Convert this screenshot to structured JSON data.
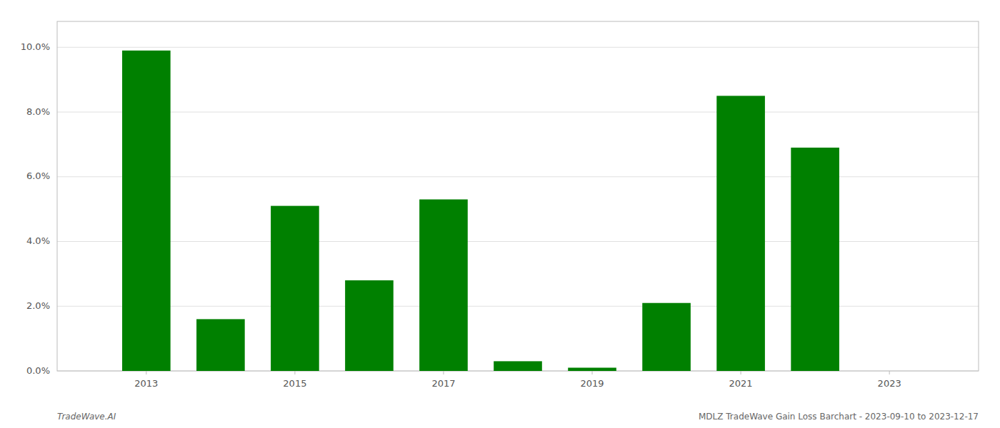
{
  "chart_data": {
    "type": "bar",
    "x": [
      2013,
      2014,
      2015,
      2016,
      2017,
      2018,
      2019,
      2020,
      2021,
      2022,
      2023
    ],
    "values": [
      0.099,
      0.016,
      0.051,
      0.028,
      0.053,
      0.003,
      0.001,
      0.021,
      0.085,
      0.069,
      0.0
    ],
    "color": "#008000",
    "xlim": [
      2011.8,
      2024.2
    ],
    "xticks": [
      2013,
      2015,
      2017,
      2019,
      2021,
      2023
    ],
    "ylim": [
      0,
      0.108
    ],
    "yticks": [
      {
        "value": 0.0,
        "label": "0.0%"
      },
      {
        "value": 0.02,
        "label": "2.0%"
      },
      {
        "value": 0.04,
        "label": "4.0%"
      },
      {
        "value": 0.06,
        "label": "6.0%"
      },
      {
        "value": 0.08,
        "label": "8.0%"
      },
      {
        "value": 0.1,
        "label": "10.0%"
      }
    ],
    "grid": true,
    "annotations": [
      "TradeWave.AI",
      "MDLZ TradeWave Gain Loss Barchart - 2023-09-10 to 2023-12-17"
    ]
  }
}
